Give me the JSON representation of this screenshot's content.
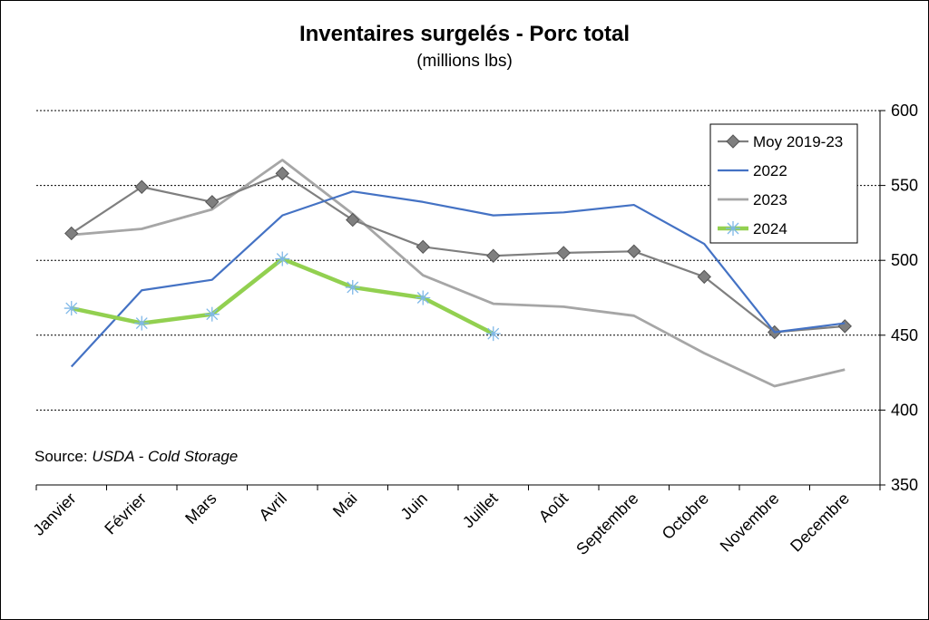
{
  "chart_data": {
    "type": "line",
    "title": "Inventaires surgelés - Porc total",
    "subtitle": "(millions lbs)",
    "source_prefix": "Source: ",
    "source_name": "USDA - Cold Storage",
    "categories": [
      "Janvier",
      "Février",
      "Mars",
      "Avril",
      "Mai",
      "Juin",
      "Juillet",
      "Août",
      "Septembre",
      "Octobre",
      "Novembre",
      "Decembre"
    ],
    "ylim": [
      350,
      600
    ],
    "yticks": [
      350,
      400,
      450,
      500,
      550,
      600
    ],
    "y_axis_side": "right",
    "grid": "horizontal dashed",
    "legend_position": "top-right",
    "series": [
      {
        "name": "Moy 2019-23",
        "color": "#7f7f7f",
        "marker": "diamond",
        "values": [
          518,
          549,
          539,
          558,
          527,
          509,
          503,
          505,
          506,
          489,
          452,
          456
        ]
      },
      {
        "name": "2022",
        "color": "#4472c4",
        "marker": "none",
        "values": [
          429,
          480,
          487,
          530,
          546,
          539,
          530,
          532,
          537,
          511,
          452,
          458
        ]
      },
      {
        "name": "2023",
        "color": "#a6a6a6",
        "marker": "none",
        "values": [
          517,
          521,
          534,
          567,
          531,
          490,
          471,
          469,
          463,
          438,
          416,
          427
        ]
      },
      {
        "name": "2024",
        "color": "#92d050",
        "marker": "asterisk",
        "values": [
          468,
          458,
          464,
          501,
          482,
          475,
          451,
          null,
          null,
          null,
          null,
          null
        ]
      }
    ]
  }
}
